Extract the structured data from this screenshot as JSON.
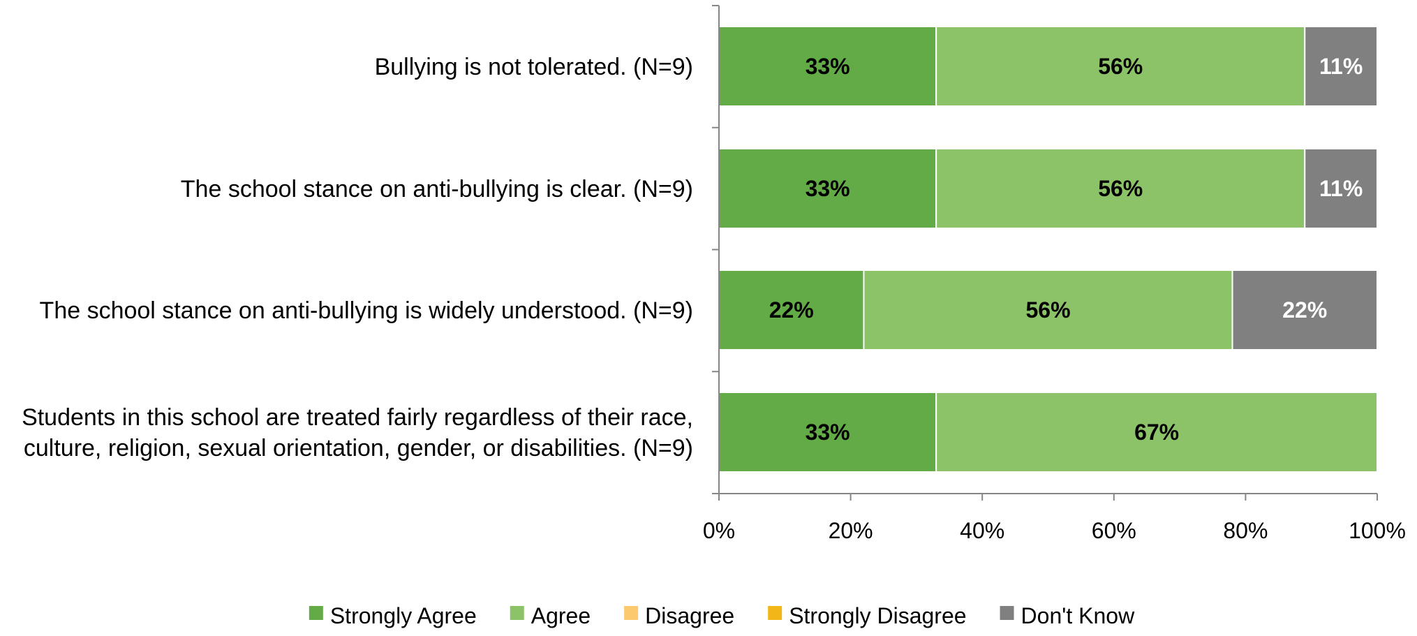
{
  "chart_data": {
    "type": "bar",
    "orientation": "horizontal",
    "stacked": true,
    "percent": true,
    "categories": [
      [
        "Bullying is not tolerated. (N=9)"
      ],
      [
        "The school stance on anti-bullying is clear. (N=9)"
      ],
      [
        "The school stance on anti-bullying is widely understood. (N=9)"
      ],
      [
        "Students in this school are treated fairly regardless of their race,",
        "culture, religion, sexual orientation, gender, or disabilities. (N=9)"
      ]
    ],
    "series": [
      {
        "name": "Strongly Agree",
        "color": "#62ab46",
        "label_color": "#000000",
        "values": [
          33,
          33,
          22,
          33
        ]
      },
      {
        "name": "Agree",
        "color": "#8dc368",
        "label_color": "#000000",
        "values": [
          56,
          56,
          56,
          67
        ]
      },
      {
        "name": "Disagree",
        "color": "#fcc96f",
        "label_color": "#000000",
        "values": [
          0,
          0,
          0,
          0
        ]
      },
      {
        "name": "Strongly Disagree",
        "color": "#f2b619",
        "label_color": "#000000",
        "values": [
          0,
          0,
          0,
          0
        ]
      },
      {
        "name": "Don't Know",
        "color": "#808080",
        "label_color": "#ffffff",
        "values": [
          11,
          11,
          22,
          0
        ]
      }
    ],
    "xlim": [
      0,
      100
    ],
    "xticks": [
      "0%",
      "20%",
      "40%",
      "60%",
      "80%",
      "100%"
    ],
    "grid": false,
    "legend_position": "bottom"
  }
}
